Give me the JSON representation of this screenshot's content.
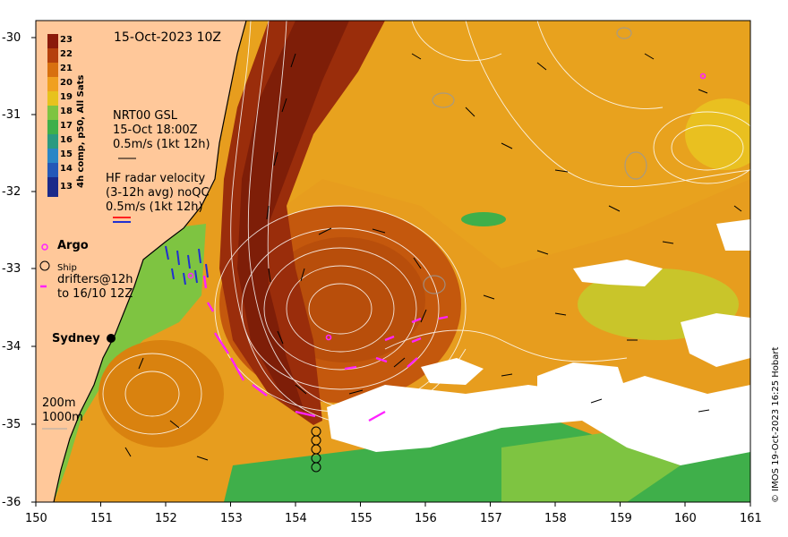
{
  "map": {
    "title": "15-Oct-2023 10Z",
    "nrt_lines": [
      "NRT00 GSL",
      "15-Oct 18:00Z",
      "0.5m/s (1kt 12h)"
    ],
    "hf_lines": [
      "HF radar velocity",
      "(3-12h avg) noQC",
      "0.5m/s (1kt 12h)"
    ],
    "argo_label": "Argo",
    "ship_label": "Ship",
    "drifters_lines": [
      "drifters@12h",
      "to 16/10 12Z"
    ],
    "city_label": "Sydney",
    "depth_lines": [
      "200m",
      "1000m"
    ],
    "credit": "© IMOS 19-Oct-2023 16:25 Hobart",
    "colorbar": {
      "title": "4h comp, p50, All Sats",
      "labels": [
        "23",
        "22",
        "21",
        "20",
        "19",
        "18",
        "17",
        "16",
        "15",
        "14",
        "13"
      ],
      "colors": [
        "#8b1a0a",
        "#b5400c",
        "#d8700f",
        "#f0a020",
        "#e7c21d",
        "#7ec441",
        "#3faf4a",
        "#2b9a80",
        "#2a86c6",
        "#2458b8",
        "#1a2a8a"
      ]
    },
    "axes": {
      "x_ticks": [
        "150",
        "151",
        "152",
        "153",
        "154",
        "155",
        "156",
        "157",
        "158",
        "159",
        "160",
        "161"
      ],
      "y_ticks": [
        "-30",
        "-31",
        "-32",
        "-33",
        "-34",
        "-35",
        "-36"
      ]
    },
    "colors": {
      "land": "#ffc89a",
      "cloud": "#ffffff",
      "argo": "#ff22ff",
      "drifter": "#ff22ff",
      "hf_vector": "#2030d0"
    }
  }
}
